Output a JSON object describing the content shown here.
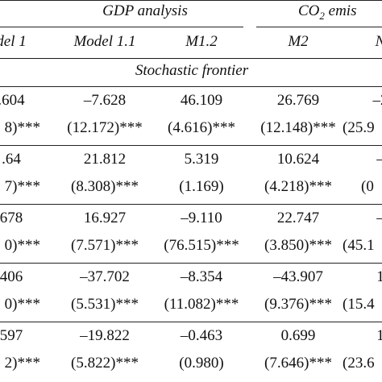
{
  "header": {
    "gdp_group": "GDP analysis",
    "co2_group_prefix": "CO",
    "co2_group_sub": "2",
    "co2_group_suffix": " emis",
    "columns": [
      "del 1",
      "Model 1.1",
      "M1.2",
      "M2",
      "N"
    ]
  },
  "section_title": "Stochastic frontier",
  "rows": [
    {
      "coef": [
        ".604",
        "–7.628",
        "46.109",
        "26.769",
        "–2"
      ],
      "se": [
        "8)***",
        "(12.172)***",
        "(4.616)***",
        "(12.148)***",
        "(25.9"
      ]
    },
    {
      "coef": [
        ".64",
        "21.812",
        "5.319",
        "10.624",
        "–"
      ],
      "se": [
        "7)***",
        "(8.308)***",
        "(1.169)",
        "(4.218)***",
        "(0"
      ]
    },
    {
      "coef": [
        "678",
        "16.927",
        "–9.110",
        "22.747",
        "–"
      ],
      "se": [
        "0)***",
        "(7.571)***",
        "(76.515)***",
        "(3.850)***",
        "(45.1"
      ]
    },
    {
      "coef": [
        "406",
        "–37.702",
        "–8.354",
        "–43.907",
        "1"
      ],
      "se": [
        "0)***",
        "(5.531)***",
        "(11.082)***",
        "(9.376)***",
        "(15.4"
      ]
    },
    {
      "coef": [
        "597",
        "–19.822",
        "–0.463",
        "0.699",
        "1"
      ],
      "se": [
        "2)***",
        "(5.822)***",
        "(0.980)",
        "(7.646)***",
        "(23.6"
      ]
    }
  ]
}
